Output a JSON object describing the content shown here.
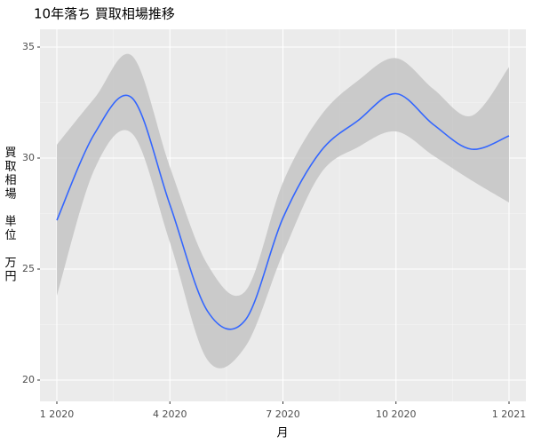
{
  "chart_data": {
    "type": "line",
    "title": "10年落ち 買取相場推移",
    "x_label": "月",
    "y_label": "買取相場 単位 万円",
    "x": [
      "2020-01",
      "2020-02",
      "2020-03",
      "2020-04",
      "2020-05",
      "2020-06",
      "2020-07",
      "2020-08",
      "2020-09",
      "2020-10",
      "2020-11",
      "2020-12",
      "2021-01"
    ],
    "series": [
      {
        "color": "#3366ff",
        "band_color": "#c4c4c4",
        "values": [
          27.2,
          31.1,
          32.7,
          27.9,
          23.1,
          22.7,
          27.3,
          30.3,
          31.7,
          32.9,
          31.5,
          30.4,
          31.0
        ],
        "lower": [
          23.8,
          29.5,
          31.1,
          26.2,
          20.9,
          21.5,
          25.7,
          29.3,
          30.5,
          31.2,
          30.1,
          29.0,
          28.0
        ],
        "upper": [
          30.6,
          32.7,
          34.6,
          29.6,
          25.2,
          24.0,
          28.9,
          31.9,
          33.5,
          34.5,
          33.1,
          31.9,
          34.1
        ]
      }
    ],
    "xticks": [
      {
        "value": "2020-01",
        "label": "1 2020"
      },
      {
        "value": "2020-04",
        "label": "4 2020"
      },
      {
        "value": "2020-07",
        "label": "7 2020"
      },
      {
        "value": "2020-10",
        "label": "10 2020"
      },
      {
        "value": "2021-01",
        "label": "1 2021"
      }
    ],
    "ylim": [
      19.04,
      35.8
    ],
    "yticks": [
      20,
      25,
      30,
      35
    ],
    "grid": true
  }
}
